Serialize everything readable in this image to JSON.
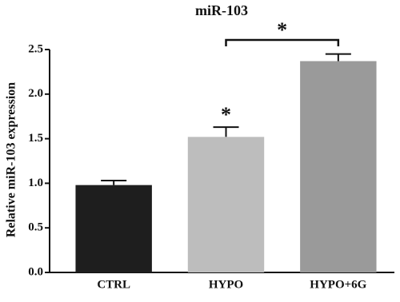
{
  "chart_data": {
    "type": "bar",
    "title": "miR-103",
    "y_label": "Relative miR-103 expression",
    "categories": [
      "CTRL",
      "HYPO",
      "HYPO+6G"
    ],
    "series": [
      {
        "name": "expression",
        "colors": [
          "#1e1e1e",
          "#bdbdbd",
          "#9a9a9a"
        ],
        "values": [
          0.98,
          1.52,
          2.37
        ],
        "errors": [
          0.05,
          0.11,
          0.08
        ]
      }
    ],
    "ylim": [
      0,
      2.5
    ],
    "yticks": [
      {
        "value": 0,
        "label": "0.0"
      },
      0.5,
      {
        "value": 1,
        "label": "1.0"
      },
      1.5,
      {
        "value": 2,
        "label": "2.0"
      },
      2.5
    ],
    "annotations": [
      "*",
      "*"
    ]
  }
}
